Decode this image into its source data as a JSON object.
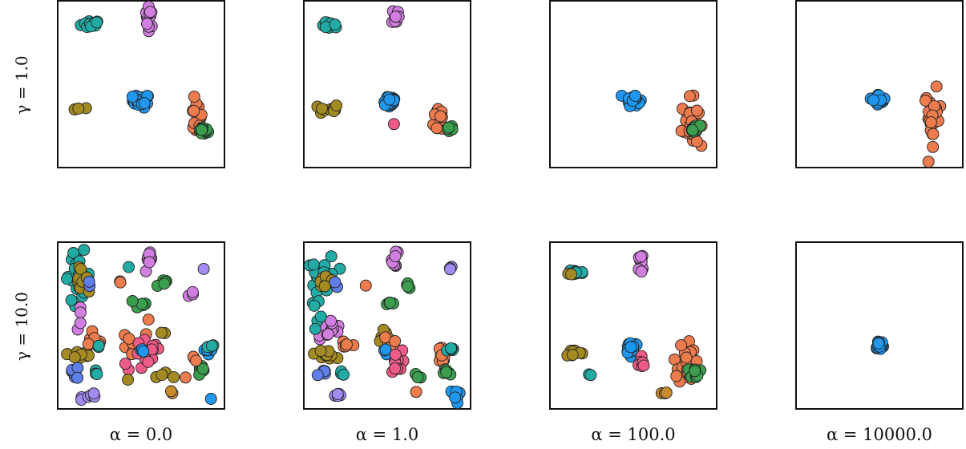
{
  "chart_data": {
    "type": "scatter",
    "grid": false,
    "axes_ticks": false,
    "colors": {
      "olive": "#a48a22",
      "cyan": "#21aba4",
      "violet": "#d27ee0",
      "blue": "#1f97ef",
      "orange": "#ec7b4e",
      "green": "#3b9e4e",
      "pink": "#ee5b86",
      "purple": "#a28af0",
      "navy": "#5f7fe8",
      "brown": "#c98a2a"
    },
    "row_labels": [
      "γ = 1.0",
      "γ = 10.0"
    ],
    "col_labels": [
      "α = 0.0",
      "α = 1.0",
      "α = 100.0",
      "α = 10000.0"
    ],
    "panels": [
      {
        "gamma": "1.0",
        "alpha": "0.0",
        "clusters": [
          {
            "color": "cyan",
            "x": 0.2,
            "y": 0.86,
            "sx": 0.03,
            "sy": 0.012,
            "n": 16
          },
          {
            "color": "violet",
            "x": 0.55,
            "y": 0.91,
            "sx": 0.012,
            "sy": 0.035,
            "n": 14
          },
          {
            "color": "olive",
            "x": 0.15,
            "y": 0.35,
            "sx": 0.03,
            "sy": 0.004,
            "n": 3
          },
          {
            "color": "blue",
            "x": 0.5,
            "y": 0.4,
            "sx": 0.025,
            "sy": 0.02,
            "n": 24
          },
          {
            "color": "orange",
            "x": 0.83,
            "y": 0.3,
            "sx": 0.018,
            "sy": 0.05,
            "n": 16
          },
          {
            "color": "green",
            "x": 0.87,
            "y": 0.22,
            "sx": 0.015,
            "sy": 0.012,
            "n": 20
          }
        ]
      },
      {
        "gamma": "1.0",
        "alpha": "1.0",
        "clusters": [
          {
            "color": "cyan",
            "x": 0.16,
            "y": 0.85,
            "sx": 0.025,
            "sy": 0.01,
            "n": 12
          },
          {
            "color": "violet",
            "x": 0.55,
            "y": 0.91,
            "sx": 0.01,
            "sy": 0.025,
            "n": 10
          },
          {
            "color": "olive",
            "x": 0.15,
            "y": 0.35,
            "sx": 0.03,
            "sy": 0.015,
            "n": 12
          },
          {
            "color": "blue",
            "x": 0.51,
            "y": 0.4,
            "sx": 0.025,
            "sy": 0.02,
            "n": 22
          },
          {
            "color": "pink",
            "x": 0.54,
            "y": 0.26,
            "sx": 0.003,
            "sy": 0.003,
            "n": 1
          },
          {
            "color": "orange",
            "x": 0.82,
            "y": 0.3,
            "sx": 0.02,
            "sy": 0.05,
            "n": 16
          },
          {
            "color": "green",
            "x": 0.87,
            "y": 0.23,
            "sx": 0.012,
            "sy": 0.012,
            "n": 8
          }
        ]
      },
      {
        "gamma": "1.0",
        "alpha": "100.0",
        "clusters": [
          {
            "color": "blue",
            "x": 0.5,
            "y": 0.41,
            "sx": 0.02,
            "sy": 0.018,
            "n": 20
          },
          {
            "color": "orange",
            "x": 0.84,
            "y": 0.27,
            "sx": 0.025,
            "sy": 0.07,
            "n": 30
          },
          {
            "color": "green",
            "x": 0.87,
            "y": 0.23,
            "sx": 0.015,
            "sy": 0.012,
            "n": 16
          }
        ]
      },
      {
        "gamma": "1.0",
        "alpha": "10000.0",
        "clusters": [
          {
            "color": "blue",
            "x": 0.5,
            "y": 0.41,
            "sx": 0.018,
            "sy": 0.015,
            "n": 18
          },
          {
            "color": "orange",
            "x": 0.82,
            "y": 0.3,
            "sx": 0.025,
            "sy": 0.08,
            "n": 26
          }
        ]
      },
      {
        "gamma": "10.0",
        "alpha": "0.0",
        "clusters": [
          {
            "color": "cyan",
            "x": 0.12,
            "y": 0.8,
            "sx": 0.04,
            "sy": 0.07,
            "n": 22
          },
          {
            "color": "olive",
            "x": 0.12,
            "y": 0.78,
            "sx": 0.03,
            "sy": 0.03,
            "n": 10
          },
          {
            "color": "navy",
            "x": 0.2,
            "y": 0.75,
            "sx": 0.01,
            "sy": 0.01,
            "n": 2
          },
          {
            "color": "violet",
            "x": 0.55,
            "y": 0.88,
            "sx": 0.015,
            "sy": 0.03,
            "n": 10
          },
          {
            "color": "violet",
            "x": 0.14,
            "y": 0.55,
            "sx": 0.01,
            "sy": 0.04,
            "n": 4
          },
          {
            "color": "violet",
            "x": 0.8,
            "y": 0.69,
            "sx": 0.01,
            "sy": 0.01,
            "n": 3
          },
          {
            "color": "purple",
            "x": 0.88,
            "y": 0.84,
            "sx": 0.005,
            "sy": 0.005,
            "n": 1
          },
          {
            "color": "green",
            "x": 0.63,
            "y": 0.75,
            "sx": 0.02,
            "sy": 0.02,
            "n": 5
          },
          {
            "color": "green",
            "x": 0.49,
            "y": 0.63,
            "sx": 0.03,
            "sy": 0.02,
            "n": 6
          },
          {
            "color": "orange",
            "x": 0.38,
            "y": 0.77,
            "sx": 0.01,
            "sy": 0.01,
            "n": 2
          },
          {
            "color": "cyan",
            "x": 0.42,
            "y": 0.85,
            "sx": 0.005,
            "sy": 0.005,
            "n": 1
          },
          {
            "color": "olive",
            "x": 0.14,
            "y": 0.33,
            "sx": 0.04,
            "sy": 0.02,
            "n": 14
          },
          {
            "color": "orange",
            "x": 0.22,
            "y": 0.4,
            "sx": 0.03,
            "sy": 0.02,
            "n": 8
          },
          {
            "color": "cyan",
            "x": 0.25,
            "y": 0.37,
            "sx": 0.01,
            "sy": 0.01,
            "n": 2
          },
          {
            "color": "navy",
            "x": 0.1,
            "y": 0.22,
            "sx": 0.02,
            "sy": 0.02,
            "n": 6
          },
          {
            "color": "cyan",
            "x": 0.23,
            "y": 0.21,
            "sx": 0.01,
            "sy": 0.01,
            "n": 3
          },
          {
            "color": "orange",
            "x": 0.45,
            "y": 0.37,
            "sx": 0.05,
            "sy": 0.05,
            "n": 10
          },
          {
            "color": "pink",
            "x": 0.54,
            "y": 0.32,
            "sx": 0.04,
            "sy": 0.05,
            "n": 14
          },
          {
            "color": "blue",
            "x": 0.5,
            "y": 0.35,
            "sx": 0.015,
            "sy": 0.015,
            "n": 4
          },
          {
            "color": "olive",
            "x": 0.63,
            "y": 0.45,
            "sx": 0.01,
            "sy": 0.01,
            "n": 2
          },
          {
            "color": "orange",
            "x": 0.53,
            "y": 0.52,
            "sx": 0.01,
            "sy": 0.01,
            "n": 1
          },
          {
            "color": "pink",
            "x": 0.41,
            "y": 0.25,
            "sx": 0.01,
            "sy": 0.01,
            "n": 2
          },
          {
            "color": "olive",
            "x": 0.42,
            "y": 0.17,
            "sx": 0.005,
            "sy": 0.005,
            "n": 1
          },
          {
            "color": "olive",
            "x": 0.67,
            "y": 0.2,
            "sx": 0.03,
            "sy": 0.01,
            "n": 4
          },
          {
            "color": "orange",
            "x": 0.77,
            "y": 0.19,
            "sx": 0.005,
            "sy": 0.005,
            "n": 1
          },
          {
            "color": "blue",
            "x": 0.9,
            "y": 0.36,
            "sx": 0.02,
            "sy": 0.02,
            "n": 6
          },
          {
            "color": "cyan",
            "x": 0.91,
            "y": 0.36,
            "sx": 0.015,
            "sy": 0.015,
            "n": 4
          },
          {
            "color": "green",
            "x": 0.86,
            "y": 0.22,
            "sx": 0.015,
            "sy": 0.015,
            "n": 6
          },
          {
            "color": "orange",
            "x": 0.82,
            "y": 0.3,
            "sx": 0.01,
            "sy": 0.01,
            "n": 3
          },
          {
            "color": "brown",
            "x": 0.69,
            "y": 0.1,
            "sx": 0.01,
            "sy": 0.01,
            "n": 2
          },
          {
            "color": "purple",
            "x": 0.21,
            "y": 0.08,
            "sx": 0.03,
            "sy": 0.01,
            "n": 6
          },
          {
            "color": "blue",
            "x": 0.92,
            "y": 0.06,
            "sx": 0.005,
            "sy": 0.005,
            "n": 1
          }
        ]
      },
      {
        "gamma": "10.0",
        "alpha": "1.0",
        "clusters": [
          {
            "color": "cyan",
            "x": 0.12,
            "y": 0.8,
            "sx": 0.04,
            "sy": 0.06,
            "n": 20
          },
          {
            "color": "olive",
            "x": 0.13,
            "y": 0.78,
            "sx": 0.03,
            "sy": 0.03,
            "n": 10
          },
          {
            "color": "navy",
            "x": 0.19,
            "y": 0.75,
            "sx": 0.01,
            "sy": 0.01,
            "n": 2
          },
          {
            "color": "violet",
            "x": 0.55,
            "y": 0.9,
            "sx": 0.01,
            "sy": 0.03,
            "n": 8
          },
          {
            "color": "purple",
            "x": 0.88,
            "y": 0.84,
            "sx": 0.01,
            "sy": 0.005,
            "n": 3
          },
          {
            "color": "green",
            "x": 0.63,
            "y": 0.75,
            "sx": 0.01,
            "sy": 0.015,
            "n": 4
          },
          {
            "color": "orange",
            "x": 0.38,
            "y": 0.75,
            "sx": 0.005,
            "sy": 0.005,
            "n": 1
          },
          {
            "color": "green",
            "x": 0.51,
            "y": 0.63,
            "sx": 0.02,
            "sy": 0.005,
            "n": 4
          },
          {
            "color": "violet",
            "x": 0.15,
            "y": 0.48,
            "sx": 0.04,
            "sy": 0.03,
            "n": 16
          },
          {
            "color": "cyan",
            "x": 0.08,
            "y": 0.6,
            "sx": 0.02,
            "sy": 0.03,
            "n": 6
          },
          {
            "color": "olive",
            "x": 0.13,
            "y": 0.33,
            "sx": 0.03,
            "sy": 0.015,
            "n": 12
          },
          {
            "color": "orange",
            "x": 0.25,
            "y": 0.37,
            "sx": 0.015,
            "sy": 0.015,
            "n": 6
          },
          {
            "color": "navy",
            "x": 0.1,
            "y": 0.22,
            "sx": 0.02,
            "sy": 0.015,
            "n": 5
          },
          {
            "color": "cyan",
            "x": 0.23,
            "y": 0.21,
            "sx": 0.01,
            "sy": 0.01,
            "n": 3
          },
          {
            "color": "olive",
            "x": 0.48,
            "y": 0.44,
            "sx": 0.02,
            "sy": 0.02,
            "n": 6
          },
          {
            "color": "orange",
            "x": 0.52,
            "y": 0.4,
            "sx": 0.02,
            "sy": 0.02,
            "n": 5
          },
          {
            "color": "blue",
            "x": 0.49,
            "y": 0.35,
            "sx": 0.01,
            "sy": 0.01,
            "n": 3
          },
          {
            "color": "pink",
            "x": 0.55,
            "y": 0.27,
            "sx": 0.02,
            "sy": 0.04,
            "n": 12
          },
          {
            "color": "green",
            "x": 0.69,
            "y": 0.2,
            "sx": 0.02,
            "sy": 0.01,
            "n": 3
          },
          {
            "color": "orange",
            "x": 0.67,
            "y": 0.1,
            "sx": 0.005,
            "sy": 0.005,
            "n": 1
          },
          {
            "color": "orange",
            "x": 0.82,
            "y": 0.3,
            "sx": 0.015,
            "sy": 0.04,
            "n": 10
          },
          {
            "color": "cyan",
            "x": 0.89,
            "y": 0.35,
            "sx": 0.015,
            "sy": 0.01,
            "n": 5
          },
          {
            "color": "green",
            "x": 0.86,
            "y": 0.22,
            "sx": 0.01,
            "sy": 0.015,
            "n": 6
          },
          {
            "color": "blue",
            "x": 0.91,
            "y": 0.07,
            "sx": 0.015,
            "sy": 0.03,
            "n": 6
          },
          {
            "color": "purple",
            "x": 0.21,
            "y": 0.08,
            "sx": 0.025,
            "sy": 0.01,
            "n": 6
          }
        ]
      },
      {
        "gamma": "10.0",
        "alpha": "100.0",
        "clusters": [
          {
            "color": "cyan",
            "x": 0.15,
            "y": 0.82,
            "sx": 0.025,
            "sy": 0.012,
            "n": 12
          },
          {
            "color": "olive",
            "x": 0.12,
            "y": 0.81,
            "sx": 0.01,
            "sy": 0.005,
            "n": 2
          },
          {
            "color": "violet",
            "x": 0.55,
            "y": 0.87,
            "sx": 0.01,
            "sy": 0.035,
            "n": 12
          },
          {
            "color": "olive",
            "x": 0.14,
            "y": 0.34,
            "sx": 0.025,
            "sy": 0.012,
            "n": 12
          },
          {
            "color": "cyan",
            "x": 0.24,
            "y": 0.21,
            "sx": 0.01,
            "sy": 0.01,
            "n": 2
          },
          {
            "color": "blue",
            "x": 0.49,
            "y": 0.37,
            "sx": 0.02,
            "sy": 0.02,
            "n": 20
          },
          {
            "color": "pink",
            "x": 0.55,
            "y": 0.26,
            "sx": 0.01,
            "sy": 0.03,
            "n": 8
          },
          {
            "color": "orange",
            "x": 0.82,
            "y": 0.28,
            "sx": 0.025,
            "sy": 0.07,
            "n": 30
          },
          {
            "color": "green",
            "x": 0.87,
            "y": 0.22,
            "sx": 0.015,
            "sy": 0.015,
            "n": 14
          },
          {
            "color": "brown",
            "x": 0.68,
            "y": 0.1,
            "sx": 0.01,
            "sy": 0.005,
            "n": 3
          }
        ]
      },
      {
        "gamma": "10.0",
        "alpha": "10000.0",
        "clusters": [
          {
            "color": "blue",
            "x": 0.5,
            "y": 0.38,
            "sx": 0.015,
            "sy": 0.018,
            "n": 20
          }
        ]
      }
    ]
  }
}
